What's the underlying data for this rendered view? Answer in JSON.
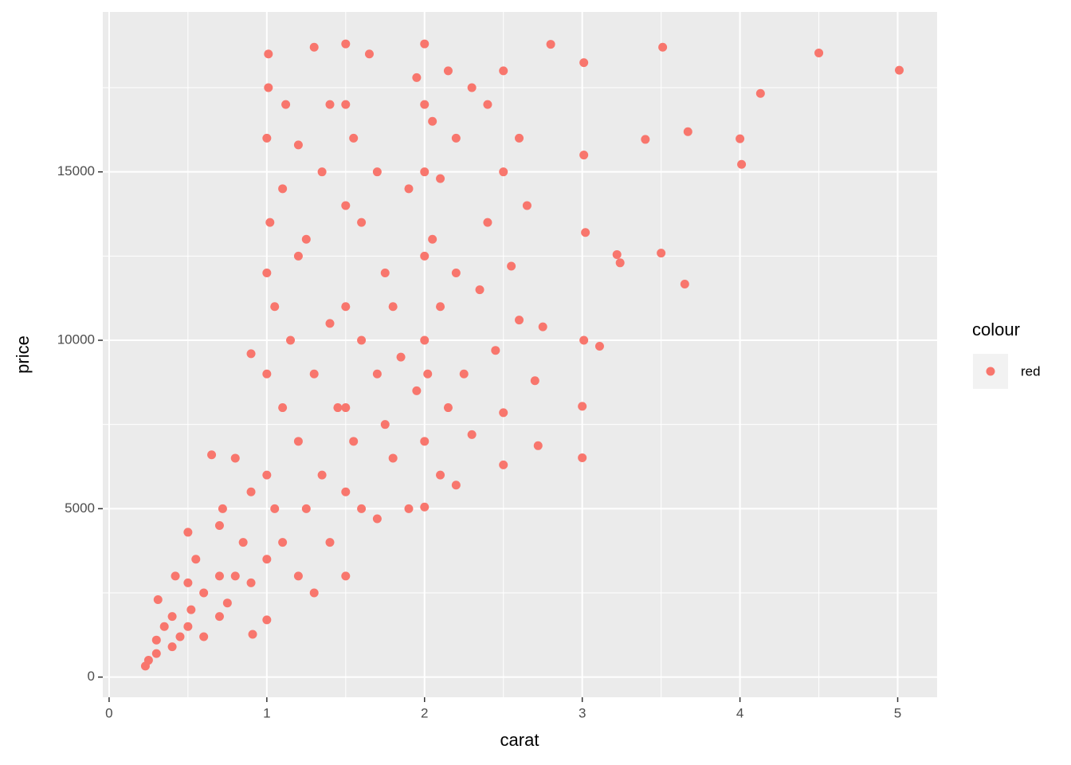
{
  "chart_data": {
    "type": "scatter",
    "x_label": "carat",
    "y_label": "price",
    "legend_title": "colour",
    "legend_position": "right",
    "grid": true,
    "xlim": [
      -0.04,
      5.25
    ],
    "ylim": [
      -599,
      19748
    ],
    "xticks": [
      0,
      1,
      2,
      3,
      4,
      5
    ],
    "yticks": [
      0,
      5000,
      10000,
      15000
    ],
    "xminorticks": [
      0.5,
      1.5,
      2.5,
      3.5,
      4.5
    ],
    "yminorticks": [
      2500,
      7500,
      12500,
      17500
    ],
    "series": [
      {
        "name": "red",
        "color": "#F8766D",
        "x": [
          0.23,
          0.25,
          0.3,
          0.3,
          0.31,
          0.35,
          0.4,
          0.4,
          0.42,
          0.45,
          0.5,
          0.5,
          0.5,
          0.52,
          0.55,
          0.6,
          0.6,
          0.65,
          0.7,
          0.7,
          0.7,
          0.72,
          0.75,
          0.8,
          0.8,
          0.85,
          0.9,
          0.9,
          0.9,
          0.91,
          1.0,
          1.0,
          1.0,
          1.0,
          1.0,
          1.0,
          1.01,
          1.01,
          1.02,
          1.05,
          1.05,
          1.1,
          1.1,
          1.1,
          1.12,
          1.15,
          1.2,
          1.2,
          1.2,
          1.2,
          1.25,
          1.25,
          1.3,
          1.3,
          1.3,
          1.35,
          1.35,
          1.4,
          1.4,
          1.4,
          1.45,
          1.5,
          1.5,
          1.5,
          1.5,
          1.5,
          1.5,
          1.5,
          1.55,
          1.55,
          1.6,
          1.6,
          1.6,
          1.65,
          1.7,
          1.7,
          1.7,
          1.75,
          1.75,
          1.8,
          1.8,
          1.85,
          1.9,
          1.9,
          1.95,
          1.95,
          2.0,
          2.0,
          2.0,
          2.0,
          2.0,
          2.0,
          2.0,
          2.02,
          2.05,
          2.05,
          2.1,
          2.1,
          2.1,
          2.15,
          2.15,
          2.2,
          2.2,
          2.2,
          2.25,
          2.3,
          2.3,
          2.35,
          2.4,
          2.4,
          2.45,
          2.5,
          2.5,
          2.5,
          2.55,
          2.6,
          2.6,
          2.65,
          2.7,
          2.72,
          2.75,
          2.8,
          2.5,
          3.0,
          3.0,
          3.01,
          3.01,
          3.02,
          3.01,
          3.11,
          3.22,
          3.24,
          3.4,
          3.5,
          3.51,
          3.65,
          3.67,
          4.0,
          4.01,
          4.13,
          4.5,
          5.01
        ],
        "values": [
          326,
          500,
          700,
          1100,
          2300,
          1500,
          900,
          1800,
          3000,
          1200,
          1500,
          2800,
          4300,
          2000,
          3500,
          1200,
          2500,
          6600,
          1800,
          3000,
          4500,
          5000,
          2200,
          3000,
          6500,
          4000,
          2800,
          9600,
          5500,
          1270,
          1700,
          3500,
          6000,
          9000,
          12000,
          16000,
          17500,
          18500,
          13500,
          5000,
          11000,
          4000,
          8000,
          14500,
          17000,
          10000,
          3000,
          7000,
          12500,
          15800,
          5000,
          13000,
          2500,
          9000,
          18700,
          6000,
          15000,
          4000,
          10500,
          17000,
          8000,
          3000,
          5500,
          8000,
          11000,
          14000,
          17000,
          18800,
          7000,
          16000,
          5000,
          10000,
          13500,
          18500,
          4700,
          9000,
          15000,
          7500,
          12000,
          6500,
          11000,
          9500,
          5000,
          14500,
          8500,
          17800,
          5050,
          7000,
          10000,
          12500,
          15000,
          17000,
          18800,
          9000,
          13000,
          16500,
          6000,
          11000,
          14800,
          8000,
          18000,
          5700,
          12000,
          16000,
          9000,
          7200,
          17500,
          11500,
          13500,
          17000,
          9700,
          7850,
          15000,
          18000,
          12200,
          10600,
          16000,
          14000,
          8800,
          6870,
          10400,
          18788,
          6300,
          6512,
          8040,
          10000,
          18242,
          13200,
          15500,
          9823,
          12545,
          12300,
          15964,
          12587,
          18701,
          11668,
          16193,
          15984,
          15223,
          17329,
          18531,
          18018
        ]
      }
    ]
  }
}
